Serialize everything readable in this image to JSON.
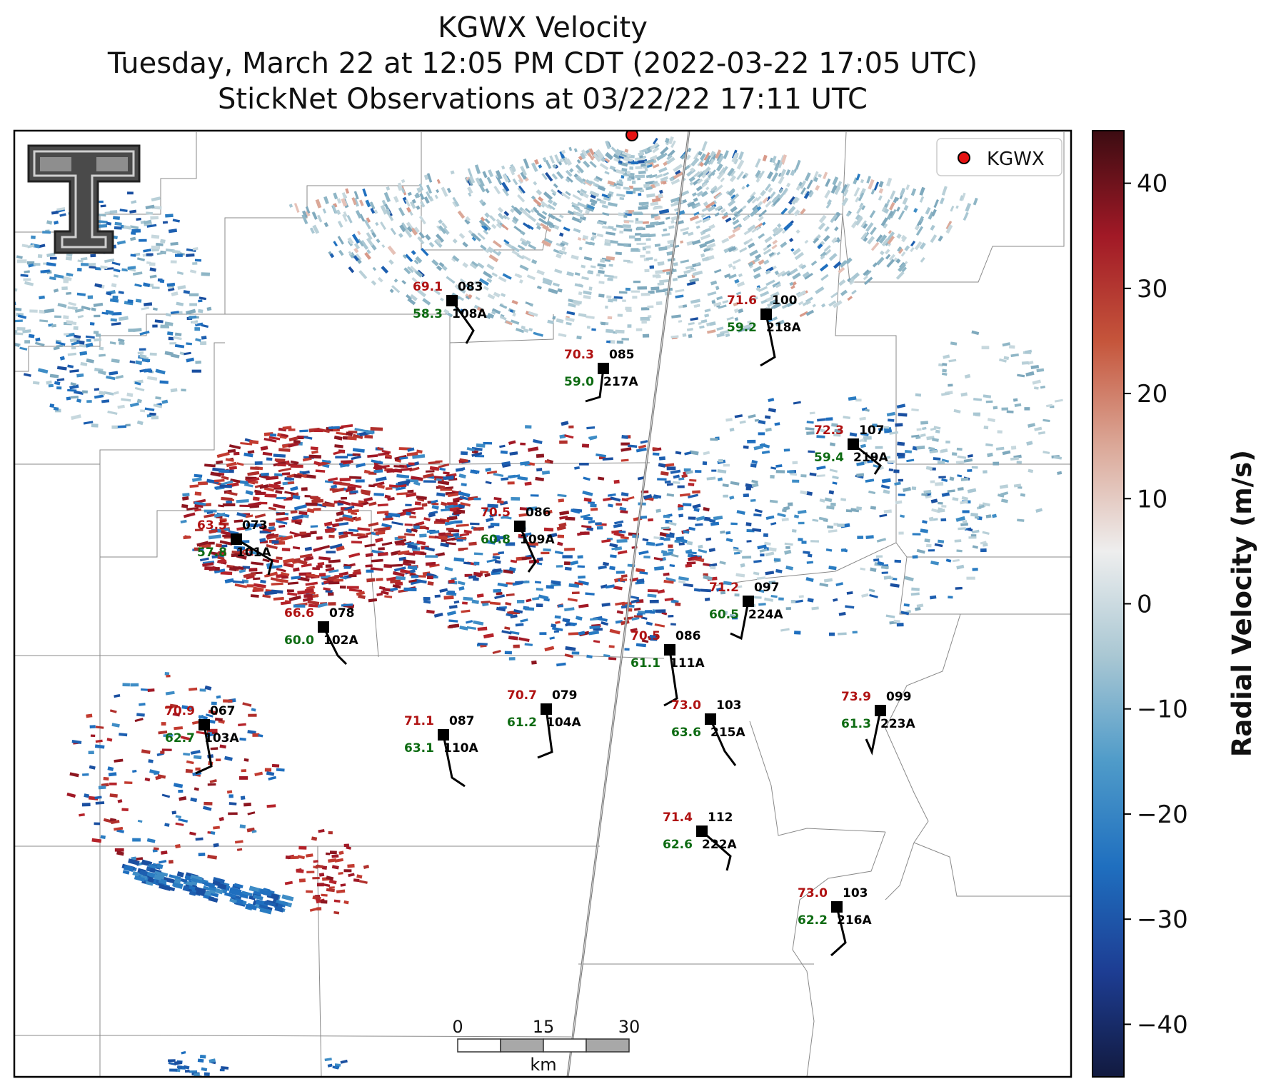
{
  "title": {
    "line1": "KGWX Velocity",
    "line2": "Tuesday, March 22 at 12:05 PM CDT (2022-03-22 17:05 UTC)",
    "line3": "StickNet Observations at 03/22/22 17:11 UTC"
  },
  "legend": {
    "label": "KGWX",
    "marker_color": "#e41212"
  },
  "colorbar": {
    "label": "Radial Velocity (m/s)",
    "min": -45,
    "max": 45,
    "ticks": [
      "40",
      "30",
      "20",
      "10",
      "0",
      "−10",
      "−20",
      "−30",
      "−40"
    ],
    "colors": [
      "#121a3f",
      "#1d3d93",
      "#1f6fbf",
      "#4f9bc9",
      "#a9c7d3",
      "#eeeeee",
      "#dba898",
      "#c5553b",
      "#a11926",
      "#3c0c12"
    ]
  },
  "scale_bar": {
    "labels": [
      "0",
      "15",
      "30"
    ],
    "unit": "km"
  },
  "logo": {
    "name": "texas-tech-double-t-logo"
  },
  "stations": [
    {
      "id": "108A",
      "temp": "69.1",
      "dew": "58.3",
      "dir": "083"
    },
    {
      "id": "218A",
      "temp": "71.6",
      "dew": "59.2",
      "dir": "100"
    },
    {
      "id": "217A",
      "temp": "70.3",
      "dew": "59.0",
      "dir": "085"
    },
    {
      "id": "219A",
      "temp": "72.3",
      "dew": "59.4",
      "dir": "107"
    },
    {
      "id": "101A",
      "temp": "63.5",
      "dew": "57.8",
      "dir": "073"
    },
    {
      "id": "109A",
      "temp": "70.5",
      "dew": "60.8",
      "dir": "086"
    },
    {
      "id": "224A",
      "temp": "71.2",
      "dew": "60.5",
      "dir": "097"
    },
    {
      "id": "102A",
      "temp": "66.6",
      "dew": "60.0",
      "dir": "078"
    },
    {
      "id": "111A",
      "temp": "70.5",
      "dew": "61.1",
      "dir": "086"
    },
    {
      "id": "103A",
      "temp": "70.9",
      "dew": "62.7",
      "dir": "067"
    },
    {
      "id": "110A",
      "temp": "71.1",
      "dew": "63.1",
      "dir": "087"
    },
    {
      "id": "104A",
      "temp": "70.7",
      "dew": "61.2",
      "dir": "079"
    },
    {
      "id": "215A",
      "temp": "73.0",
      "dew": "63.6",
      "dir": "103"
    },
    {
      "id": "223A",
      "temp": "73.9",
      "dew": "61.3",
      "dir": "099"
    },
    {
      "id": "222A",
      "temp": "71.4",
      "dew": "62.6",
      "dir": "112"
    },
    {
      "id": "216A",
      "temp": "73.0",
      "dew": "62.2",
      "dir": "103"
    }
  ]
}
